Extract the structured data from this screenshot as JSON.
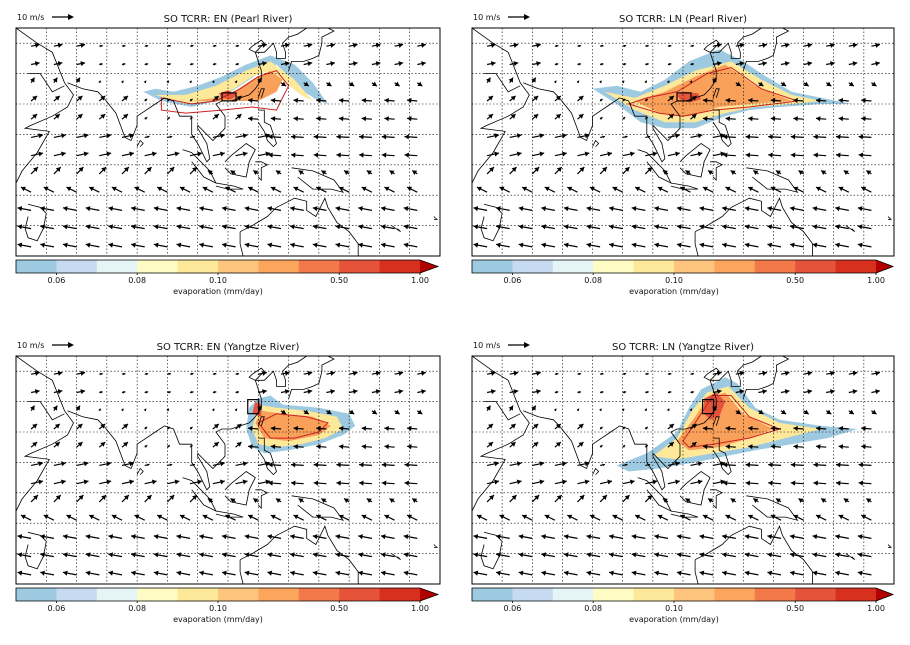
{
  "figure": {
    "panels": [
      {
        "title": "SO TCRR: EN (Pearl River)",
        "ref_vector_label": "10 m/s",
        "box": [
          110,
          22
        ],
        "plume": [
          [
            82,
            24
          ],
          [
            88,
            21
          ],
          [
            98,
            19
          ],
          [
            106,
            21
          ],
          [
            114,
            26
          ],
          [
            120,
            30
          ],
          [
            126,
            33
          ],
          [
            130,
            29
          ],
          [
            135,
            24
          ],
          [
            140,
            21
          ],
          [
            143,
            20
          ],
          [
            138,
            27
          ],
          [
            132,
            33
          ],
          [
            124,
            36
          ],
          [
            116,
            33
          ],
          [
            108,
            29
          ],
          [
            100,
            26
          ],
          [
            92,
            24
          ],
          [
            86,
            25
          ]
        ],
        "mid": [
          [
            86,
            23
          ],
          [
            96,
            20
          ],
          [
            104,
            21
          ],
          [
            112,
            25
          ],
          [
            118,
            29
          ],
          [
            124,
            31
          ],
          [
            129,
            27
          ],
          [
            134,
            23
          ],
          [
            138,
            21
          ],
          [
            132,
            28
          ],
          [
            124,
            34
          ],
          [
            116,
            31
          ],
          [
            106,
            26
          ],
          [
            96,
            23
          ]
        ],
        "core": [
          [
            98,
            21
          ],
          [
            106,
            22
          ],
          [
            112,
            24
          ],
          [
            118,
            28
          ],
          [
            124,
            31
          ],
          [
            128,
            28
          ],
          [
            126,
            24
          ],
          [
            120,
            21
          ],
          [
            110,
            21
          ]
        ],
        "hot": [
          [
            107,
            23.5
          ],
          [
            110,
            24.5
          ],
          [
            113,
            23
          ],
          [
            111,
            21.5
          ],
          [
            108,
            22
          ]
        ],
        "contour": [
          [
            88,
            22
          ],
          [
            98,
            20
          ],
          [
            106,
            21
          ],
          [
            114,
            25
          ],
          [
            120,
            29
          ],
          [
            126,
            31
          ],
          [
            130,
            26
          ],
          [
            128,
            22
          ],
          [
            126,
            18
          ],
          [
            118,
            19
          ],
          [
            108,
            18
          ],
          [
            96,
            17
          ],
          [
            88,
            18
          ]
        ]
      },
      {
        "title": "SO TCRR: LN (Pearl River)",
        "ref_vector_label": "10 m/s",
        "box": [
          110,
          22
        ],
        "plume": [
          [
            80,
            25
          ],
          [
            88,
            20
          ],
          [
            96,
            14
          ],
          [
            104,
            12
          ],
          [
            114,
            12
          ],
          [
            124,
            16
          ],
          [
            132,
            18
          ],
          [
            142,
            19
          ],
          [
            156,
            20
          ],
          [
            166,
            20
          ],
          [
            156,
            22
          ],
          [
            146,
            24
          ],
          [
            136,
            30
          ],
          [
            130,
            34
          ],
          [
            122,
            38
          ],
          [
            112,
            34
          ],
          [
            104,
            28
          ],
          [
            96,
            24
          ],
          [
            88,
            26
          ]
        ],
        "mid": [
          [
            84,
            24
          ],
          [
            94,
            18
          ],
          [
            104,
            14
          ],
          [
            114,
            14
          ],
          [
            124,
            17
          ],
          [
            134,
            19
          ],
          [
            146,
            20
          ],
          [
            156,
            21
          ],
          [
            146,
            23
          ],
          [
            136,
            28
          ],
          [
            126,
            34
          ],
          [
            114,
            31
          ],
          [
            104,
            26
          ],
          [
            94,
            22
          ]
        ],
        "core": [
          [
            94,
            21
          ],
          [
            102,
            17
          ],
          [
            112,
            16
          ],
          [
            122,
            19
          ],
          [
            132,
            20
          ],
          [
            146,
            21
          ],
          [
            134,
            26
          ],
          [
            124,
            33
          ],
          [
            114,
            29
          ],
          [
            104,
            24
          ]
        ],
        "hot": [
          [
            108,
            23
          ],
          [
            111,
            24
          ],
          [
            115,
            23.5
          ],
          [
            116,
            21.5
          ],
          [
            112,
            20.5
          ],
          [
            109,
            21.5
          ]
        ],
        "contour": [
          [
            92,
            20
          ],
          [
            102,
            17
          ],
          [
            110,
            16
          ],
          [
            120,
            18
          ],
          [
            132,
            19
          ],
          [
            148,
            21
          ],
          [
            136,
            25
          ],
          [
            126,
            32
          ],
          [
            118,
            30
          ],
          [
            108,
            24
          ],
          [
            98,
            22
          ]
        ]
      },
      {
        "title": "SO TCRR: EN (Yangtze River)",
        "ref_vector_label": "10 m/s",
        "box": [
          118.5,
          29
        ],
        "plume": [
          [
            116,
            21
          ],
          [
            118,
            15
          ],
          [
            122,
            13
          ],
          [
            130,
            14
          ],
          [
            140,
            16
          ],
          [
            148,
            19
          ],
          [
            152,
            22
          ],
          [
            150,
            26
          ],
          [
            140,
            28
          ],
          [
            128,
            29
          ],
          [
            124,
            32
          ],
          [
            120,
            31
          ],
          [
            117,
            28
          ]
        ],
        "mid": [
          [
            118,
            21
          ],
          [
            120,
            16
          ],
          [
            126,
            15
          ],
          [
            134,
            16
          ],
          [
            142,
            18
          ],
          [
            148,
            21
          ],
          [
            146,
            25
          ],
          [
            136,
            27
          ],
          [
            126,
            28
          ],
          [
            120,
            29
          ]
        ],
        "core": [
          [
            119,
            23
          ],
          [
            122,
            18
          ],
          [
            130,
            17
          ],
          [
            140,
            19
          ],
          [
            144,
            22
          ],
          [
            138,
            25
          ],
          [
            128,
            26
          ],
          [
            121,
            27
          ]
        ],
        "hot": [
          [
            118,
            26
          ],
          [
            119,
            30
          ],
          [
            121,
            29
          ],
          [
            121,
            25
          ]
        ],
        "contour": [
          [
            120,
            23
          ],
          [
            124,
            18
          ],
          [
            132,
            18
          ],
          [
            140,
            20
          ],
          [
            143,
            23
          ],
          [
            136,
            25
          ],
          [
            126,
            26
          ]
        ]
      },
      {
        "title": "SO TCRR: LN (Yangtze River)",
        "ref_vector_label": "10 m/s",
        "box": [
          118.5,
          29
        ],
        "plume": [
          [
            88,
            9
          ],
          [
            98,
            13
          ],
          [
            108,
            20
          ],
          [
            112,
            28
          ],
          [
            116,
            34
          ],
          [
            124,
            38
          ],
          [
            128,
            36
          ],
          [
            134,
            28
          ],
          [
            142,
            24
          ],
          [
            156,
            22
          ],
          [
            168,
            21
          ],
          [
            158,
            18
          ],
          [
            146,
            16
          ],
          [
            134,
            14
          ],
          [
            124,
            12
          ],
          [
            114,
            10
          ],
          [
            102,
            8
          ],
          [
            92,
            7
          ]
        ],
        "mid": [
          [
            100,
            12
          ],
          [
            108,
            18
          ],
          [
            113,
            27
          ],
          [
            118,
            33
          ],
          [
            125,
            35
          ],
          [
            132,
            28
          ],
          [
            142,
            23
          ],
          [
            156,
            21
          ],
          [
            144,
            18
          ],
          [
            132,
            15
          ],
          [
            120,
            13
          ],
          [
            108,
            11
          ]
        ],
        "core": [
          [
            108,
            17
          ],
          [
            114,
            25
          ],
          [
            118,
            31
          ],
          [
            124,
            33
          ],
          [
            130,
            26
          ],
          [
            140,
            21
          ],
          [
            132,
            18
          ],
          [
            122,
            15
          ],
          [
            112,
            14
          ]
        ],
        "hot": [
          [
            117,
            26
          ],
          [
            117,
            31
          ],
          [
            121,
            33
          ],
          [
            124,
            30
          ],
          [
            122,
            25
          ],
          [
            119,
            24
          ]
        ],
        "contour": [
          [
            110,
            17
          ],
          [
            116,
            26
          ],
          [
            120,
            32
          ],
          [
            126,
            32
          ],
          [
            132,
            25
          ],
          [
            142,
            21
          ],
          [
            132,
            18
          ],
          [
            120,
            16
          ],
          [
            112,
            15
          ]
        ]
      }
    ],
    "colorbar": {
      "tick_labels": [
        "0.06",
        "0.08",
        "0.10",
        "0.50",
        "1.00"
      ],
      "label": "evaporation (mm/day)",
      "colors": [
        "#9ecae1",
        "#c6dbef",
        "#e5f4f4",
        "#fffbc4",
        "#fee89a",
        "#fdc57d",
        "#fca55d",
        "#f4794a",
        "#e5533b",
        "#d7301f",
        "#b30000"
      ]
    },
    "colors": {
      "coast": "#000000",
      "box": "#000000",
      "contour": "#cc2222",
      "grid": "#000000"
    }
  }
}
